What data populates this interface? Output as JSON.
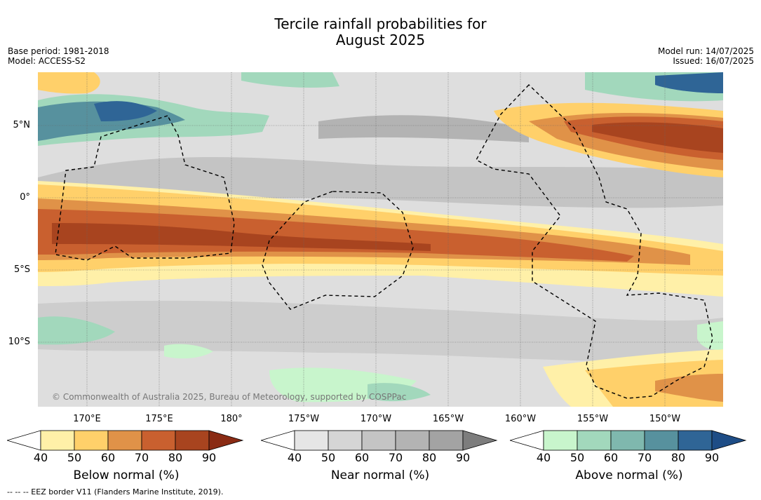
{
  "title_line1": "Tercile rainfall probabilities for",
  "title_line2": "August 2025",
  "base_period": "Base period: 1981-2018",
  "model": "Model: ACCESS-S2",
  "model_run": "Model run: 14/07/2025",
  "issued": "Issued: 16/07/2025",
  "copyright": "© Commonwealth of Australia 2025, Bureau of Meteorology, supported by COSPPac",
  "lat_labels": [
    "5°N",
    "0°",
    "5°S",
    "10°S"
  ],
  "lon_labels": [
    "170°E",
    "175°E",
    "180°",
    "175°W",
    "170°W",
    "165°W",
    "160°W",
    "155°W",
    "150°W"
  ],
  "colorbars": [
    {
      "label": "Below normal (%)",
      "ticks": [
        "40",
        "50",
        "60",
        "70",
        "80",
        "90"
      ],
      "colors": [
        "#fff0a8",
        "#ffd06a",
        "#e09248",
        "#c9602f",
        "#a8441f",
        "#8a2b14"
      ]
    },
    {
      "label": "Near normal (%)",
      "ticks": [
        "40",
        "50",
        "60",
        "70",
        "80",
        "90"
      ],
      "colors": [
        "#e6e6e6",
        "#d5d5d5",
        "#c4c4c4",
        "#b3b3b3",
        "#a3a3a3",
        "#7d7d7d"
      ]
    },
    {
      "label": "Above normal (%)",
      "ticks": [
        "40",
        "50",
        "60",
        "70",
        "80",
        "90"
      ],
      "colors": [
        "#c8f5cc",
        "#a2d8bc",
        "#7fb8ae",
        "#57919e",
        "#2f6596",
        "#1e4d86"
      ]
    }
  ],
  "footer": "--  --  -- EEZ border V11 (Flanders Marine Institute, 2019).",
  "colors": {
    "background_near": "#dedede",
    "below_light": "#fff0a8",
    "below_mid": "#ffd06a",
    "below_strong": "#e09248",
    "below_deep": "#c9602f",
    "below_max": "#a8441f",
    "above_light": "#c8f5cc",
    "above_mid": "#a2d8bc",
    "above_strong": "#57919e",
    "above_deep": "#2f6596"
  }
}
